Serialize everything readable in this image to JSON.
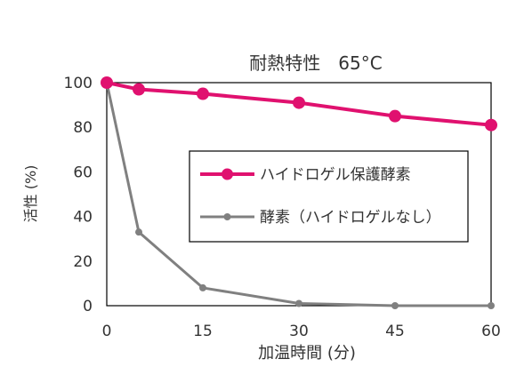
{
  "chart_data": {
    "type": "line",
    "title": "耐熱特性　65°C",
    "xlabel": "加温時間 (分)",
    "ylabel": "活性 (%)",
    "xlim": [
      0,
      60
    ],
    "ylim": [
      0,
      100
    ],
    "x_ticks": [
      "0",
      "15",
      "30",
      "45",
      "60"
    ],
    "y_ticks": [
      "0",
      "20",
      "40",
      "60",
      "80",
      "100"
    ],
    "legend_position": "center-right",
    "series": [
      {
        "name": "ハイドロゲル保護酵素",
        "color": "#e0116f",
        "marker": "circle-large",
        "x": [
          0,
          5,
          15,
          30,
          45,
          60
        ],
        "y": [
          100,
          97,
          95,
          91,
          85,
          81
        ]
      },
      {
        "name": "酵素（ハイドロゲルなし）",
        "color": "#808080",
        "marker": "circle-small",
        "x": [
          0,
          5,
          15,
          30,
          45,
          60
        ],
        "y": [
          100,
          33,
          8,
          1,
          0,
          0
        ]
      }
    ]
  }
}
